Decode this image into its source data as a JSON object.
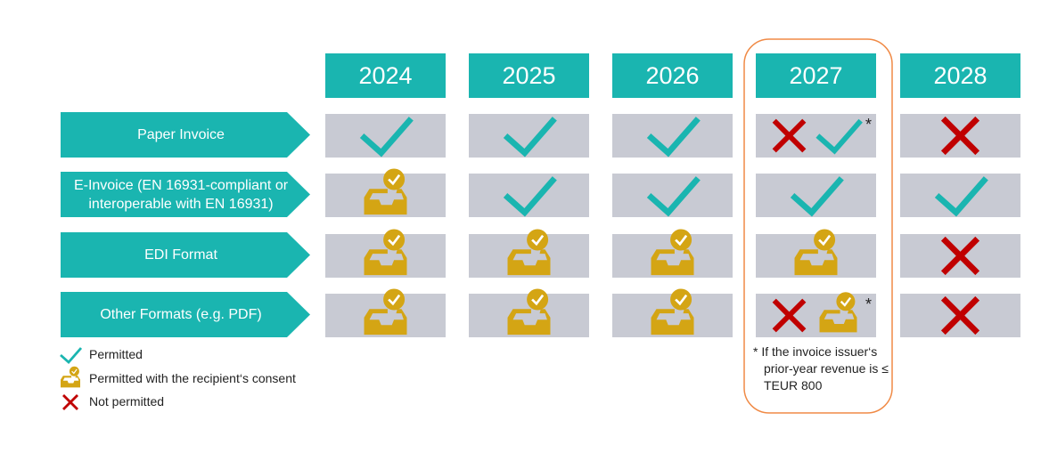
{
  "years": [
    "2024",
    "2025",
    "2026",
    "2027",
    "2028"
  ],
  "rows": [
    {
      "label": "Paper Invoice"
    },
    {
      "label": "E-Invoice (EN 16931-compliant or interoperable with EN 16931)"
    },
    {
      "label": "EDI Format"
    },
    {
      "label": "Other Formats (e.g. PDF)"
    }
  ],
  "legend": [
    {
      "label": "Permitted"
    },
    {
      "label": "Permitted with the recipient‘s consent"
    },
    {
      "label": "Not permitted"
    }
  ],
  "footnote": {
    "marker": "*",
    "text": "If the invoice issuer‘s prior-year revenue is ≤ TEUR 800"
  }
}
